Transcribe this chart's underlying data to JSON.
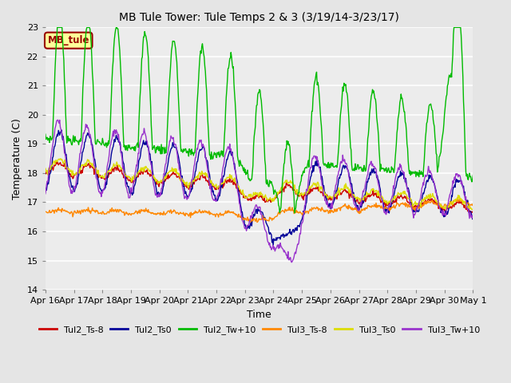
{
  "title": "MB Tule Tower: Tule Temps 2 & 3 (3/19/14-3/23/17)",
  "xlabel": "Time",
  "ylabel": "Temperature (C)",
  "ylim": [
    14.0,
    23.0
  ],
  "yticks": [
    14.0,
    15.0,
    16.0,
    17.0,
    18.0,
    19.0,
    20.0,
    21.0,
    22.0,
    23.0
  ],
  "bg_color": "#e5e5e5",
  "plot_bg_color": "#ececec",
  "grid_color": "#ffffff",
  "legend_label": "MB_tule",
  "legend_bg": "#ffff99",
  "legend_border_color": "#990000",
  "legend_text_color": "#990000",
  "series_colors": {
    "Tul2_Ts-8": "#cc0000",
    "Tul2_Ts0": "#000099",
    "Tul2_Tw+10": "#00bb00",
    "Tul3_Ts-8": "#ff8800",
    "Tul3_Ts0": "#dddd00",
    "Tul3_Tw+10": "#9933cc"
  },
  "xtick_labels": [
    "Apr 16",
    "Apr 17",
    "Apr 18",
    "Apr 19",
    "Apr 20",
    "Apr 21",
    "Apr 22",
    "Apr 23",
    "Apr 24",
    "Apr 25",
    "Apr 26",
    "Apr 27",
    "Apr 28",
    "Apr 29",
    "Apr 30",
    "May 1"
  ],
  "n_days": 15,
  "pts_per_day": 48
}
